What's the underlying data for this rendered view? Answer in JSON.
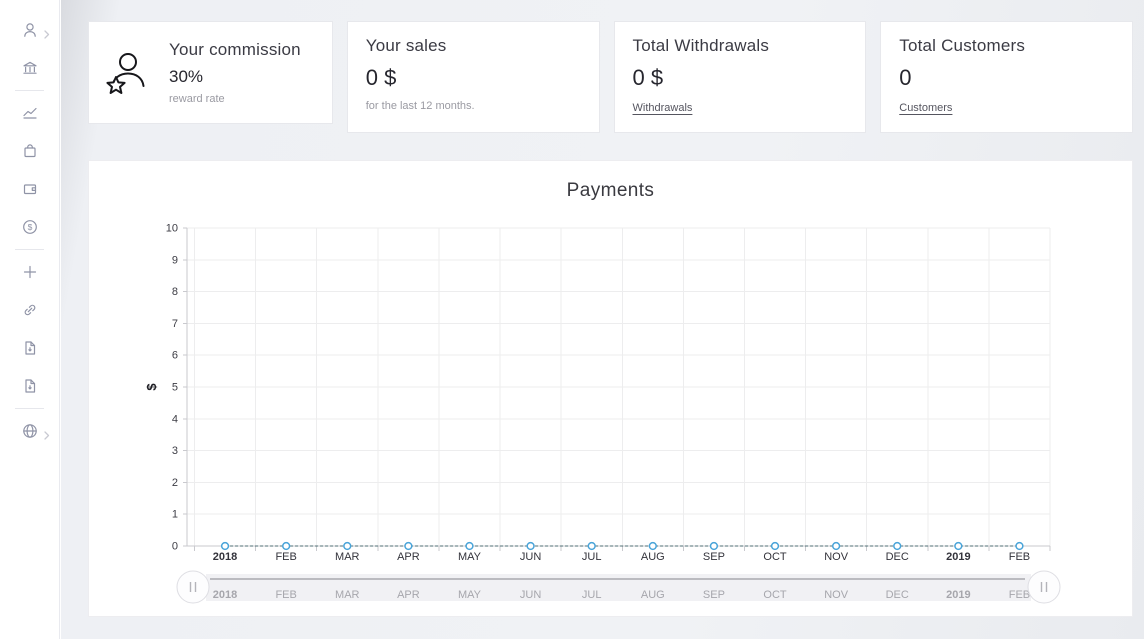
{
  "sidebar": {
    "icons": [
      "user",
      "bank",
      "performance-chart",
      "shop-bag",
      "wallet",
      "dollar-circle",
      "plus",
      "referral-link",
      "document-pdf",
      "document-pdf-2",
      "globe"
    ],
    "expandable_icons": [
      "user",
      "globe"
    ]
  },
  "cards": [
    {
      "title": "Your commission",
      "value": "30%",
      "subtitle": "reward rate",
      "icon": "person-star-icon"
    },
    {
      "title": "Your sales",
      "value": "0 $",
      "subtitle": "for the last 12 months."
    },
    {
      "title": "Total Withdrawals",
      "value": "0 $",
      "link": "Withdrawals"
    },
    {
      "title": "Total Customers",
      "value": "0",
      "link": "Customers"
    }
  ],
  "chart_data": {
    "type": "line",
    "title": "Payments",
    "categories": [
      "2018",
      "FEB",
      "MAR",
      "APR",
      "MAY",
      "JUN",
      "JUL",
      "AUG",
      "SEP",
      "OCT",
      "NOV",
      "DEC",
      "2019",
      "FEB"
    ],
    "bold_categories": [
      "2018",
      "2019"
    ],
    "series": [
      {
        "name": "Payments",
        "values": [
          0,
          0,
          0,
          0,
          0,
          0,
          0,
          0,
          0,
          0,
          0,
          0,
          0,
          0
        ]
      }
    ],
    "xlabel": "",
    "ylabel": "$",
    "ylim": [
      0,
      10
    ],
    "ytick_step": 1,
    "grid": true,
    "legend": "none",
    "colors": {
      "marker": "#49a4d9",
      "line": "#4e6e73",
      "grid": "#ededee",
      "axis": "#c9c9ce",
      "tick_label": "#3c3c44",
      "nav_track": "#f1f1f4",
      "nav_label": "#a6a6ac",
      "nav_line": "#9b9ba1"
    },
    "navigator": {
      "labels_same_as_categories": true,
      "left_handle": "pause-bars",
      "right_handle": "pause-bars"
    }
  }
}
